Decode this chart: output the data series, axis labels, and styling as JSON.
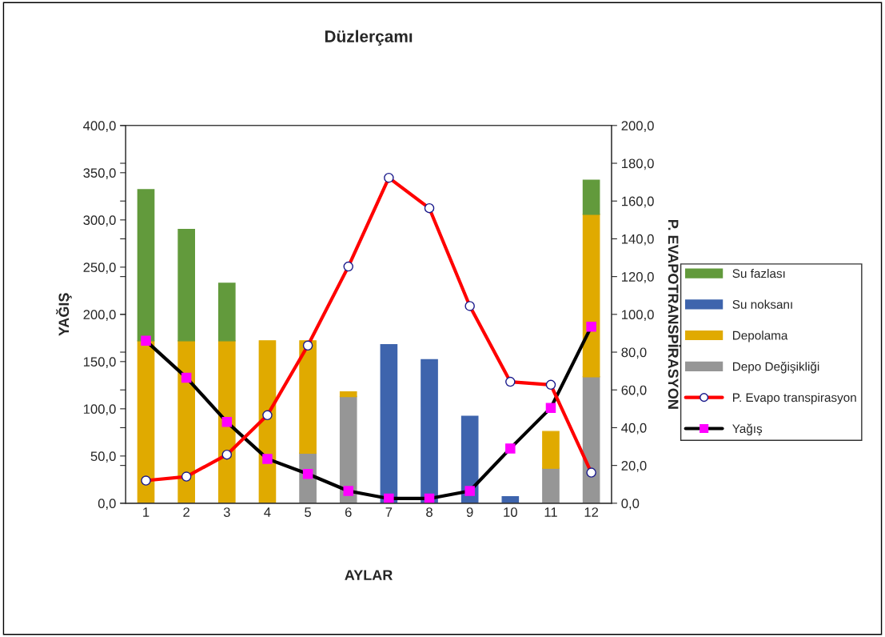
{
  "chart_data": {
    "type": "bar",
    "stacked": true,
    "title": "Düzlerçamı",
    "xlabel": "AYLAR",
    "ylabel": "YAĞIŞ",
    "y2label": "P. EVAPOTRANSPİRASYON",
    "categories": [
      "1",
      "2",
      "3",
      "4",
      "5",
      "6",
      "7",
      "8",
      "9",
      "10",
      "11",
      "12"
    ],
    "series": [
      {
        "name": "Depo Değişikliği",
        "color": "#969696",
        "values": [
          null,
          null,
          null,
          null,
          53,
          113,
          null,
          null,
          null,
          null,
          37,
          134
        ]
      },
      {
        "name": "Depolama",
        "color": "#e0aa00",
        "values": [
          172,
          172,
          172,
          172,
          119,
          5,
          null,
          null,
          null,
          null,
          39,
          172
        ]
      },
      {
        "name": "Su noksanı",
        "color": "#3e64ad",
        "values": [
          null,
          null,
          null,
          null,
          null,
          null,
          168,
          152,
          92,
          7,
          null,
          null
        ]
      },
      {
        "name": "Su fazlası",
        "color": "#629a3c",
        "values": [
          160,
          118,
          61,
          null,
          null,
          null,
          null,
          null,
          null,
          null,
          null,
          36
        ]
      },
      {
        "name": "P. Evapo transpirasyon",
        "type": "line",
        "axis": "y2",
        "color": "#ff0000",
        "marker": "circle",
        "values": [
          12.0,
          14.1,
          25.7,
          46.6,
          83.5,
          125.3,
          172.3,
          156.2,
          104.4,
          64.3,
          62.7,
          16.2
        ]
      },
      {
        "name": "Yağış",
        "type": "line",
        "color": "#000000",
        "marker": "square",
        "values": [
          172,
          133,
          86,
          47,
          31,
          13,
          5,
          5,
          13,
          58,
          101,
          187
        ]
      }
    ],
    "ylim": [
      0,
      400
    ],
    "yticks": [
      {
        "value": 0,
        "label": "0,0"
      },
      {
        "value": 50,
        "label": "50,0"
      },
      {
        "value": 100,
        "label": "100,0"
      },
      {
        "value": 150,
        "label": "150,0"
      },
      {
        "value": 200,
        "label": "200,0"
      },
      {
        "value": 250,
        "label": "250,0"
      },
      {
        "value": 300,
        "label": "300,0"
      },
      {
        "value": 350,
        "label": "350,0"
      },
      {
        "value": 400,
        "label": "400,0"
      }
    ],
    "y2lim": [
      0,
      200
    ],
    "y2ticks": [
      {
        "value": 0,
        "label": "0,0"
      },
      {
        "value": 20,
        "label": "20,0"
      },
      {
        "value": 40,
        "label": "40,0"
      },
      {
        "value": 60,
        "label": "60,0"
      },
      {
        "value": 80,
        "label": "80,0"
      },
      {
        "value": 100,
        "label": "100,0"
      },
      {
        "value": 120,
        "label": "120,0"
      },
      {
        "value": 140,
        "label": "140,0"
      },
      {
        "value": 160,
        "label": "160,0"
      },
      {
        "value": 180,
        "label": "180,0"
      },
      {
        "value": 200,
        "label": "200,0"
      }
    ],
    "grid": false,
    "legend": "right",
    "line_style": "solid"
  }
}
